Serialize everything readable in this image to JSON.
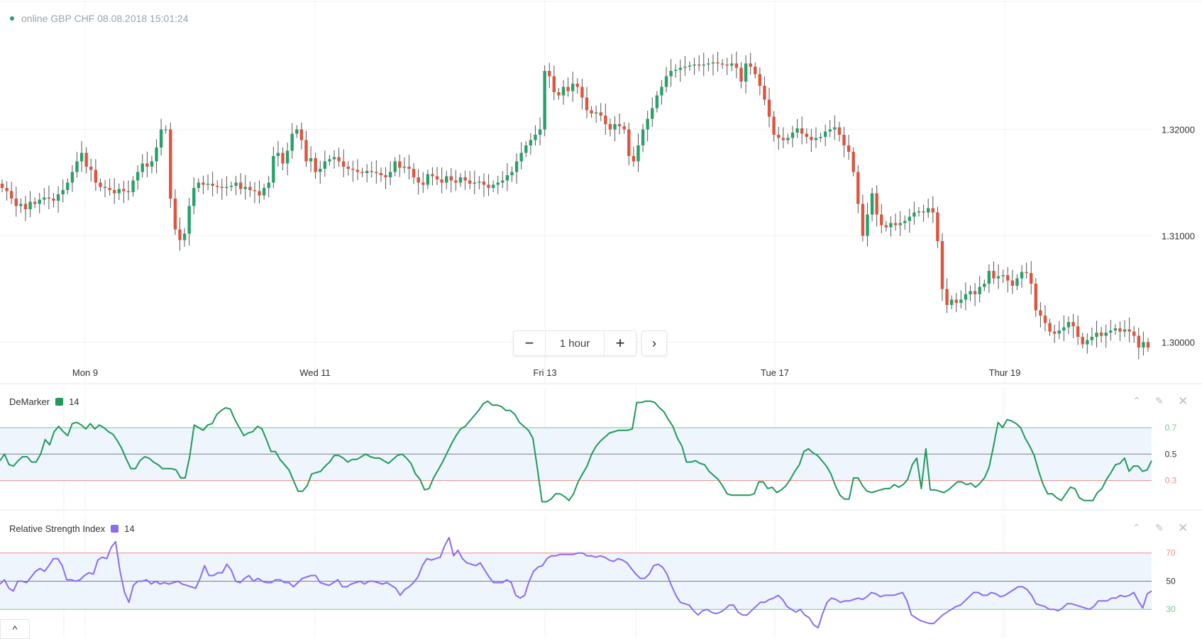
{
  "status": {
    "text": "online GBP CHF 08.08.2018 15:01:24",
    "dot_color": "#26a269"
  },
  "timeframe": {
    "minus": "−",
    "label": "1 hour",
    "plus": "+",
    "next": "›"
  },
  "colors": {
    "up": "#26a269",
    "down": "#e0533d",
    "demarker": "#1f9a5b",
    "rsi": "#8b6cf0",
    "band_fill": "#eef5fc",
    "upper_line_dem": "#7fd3a2",
    "lower_line_dem": "#ef8c8c"
  },
  "chart_data": [
    {
      "type": "candlestick",
      "xtick_labels": [
        "Mon 9",
        "Wed 11",
        "Fri 13",
        "Tue 17",
        "Thur 19"
      ],
      "ytick_labels": [
        "1.32000",
        "1.31000",
        "1.30000"
      ],
      "ylim": [
        1.2975,
        1.3315
      ],
      "series_close": [
        1.3145,
        1.3142,
        1.3135,
        1.3128,
        1.313,
        1.3125,
        1.3132,
        1.313,
        1.3134,
        1.3136,
        1.3135,
        1.3133,
        1.3139,
        1.3143,
        1.315,
        1.316,
        1.317,
        1.3178,
        1.3165,
        1.3162,
        1.315,
        1.3146,
        1.3145,
        1.3143,
        1.314,
        1.3144,
        1.3142,
        1.3141,
        1.3152,
        1.316,
        1.3168,
        1.3165,
        1.317,
        1.3183,
        1.32,
        1.32,
        1.3135,
        1.3106,
        1.3096,
        1.3102,
        1.3128,
        1.3145,
        1.315,
        1.3148,
        1.3149,
        1.3147,
        1.3146,
        1.3145,
        1.3146,
        1.3147,
        1.315,
        1.3144,
        1.3146,
        1.3143,
        1.3142,
        1.3138,
        1.3145,
        1.315,
        1.3175,
        1.3178,
        1.3168,
        1.318,
        1.3196,
        1.32,
        1.319,
        1.317,
        1.3173,
        1.316,
        1.3163,
        1.317,
        1.3172,
        1.3174,
        1.317,
        1.3165,
        1.3163,
        1.3162,
        1.316,
        1.3159,
        1.3161,
        1.316,
        1.3159,
        1.3157,
        1.3155,
        1.316,
        1.317,
        1.3164,
        1.3165,
        1.3163,
        1.3155,
        1.315,
        1.3148,
        1.3158,
        1.3156,
        1.3153,
        1.315,
        1.3156,
        1.3152,
        1.315,
        1.3155,
        1.3152,
        1.3149,
        1.315,
        1.3151,
        1.3148,
        1.3145,
        1.3148,
        1.315,
        1.3152,
        1.3157,
        1.316,
        1.317,
        1.3178,
        1.3185,
        1.319,
        1.3195,
        1.32,
        1.3255,
        1.325,
        1.3235,
        1.3232,
        1.324,
        1.3236,
        1.3243,
        1.324,
        1.323,
        1.3218,
        1.3215,
        1.3216,
        1.3213,
        1.3205,
        1.32,
        1.3205,
        1.3203,
        1.32,
        1.3175,
        1.317,
        1.3185,
        1.32,
        1.321,
        1.322,
        1.3232,
        1.324,
        1.325,
        1.3255,
        1.3256,
        1.3258,
        1.3259,
        1.326,
        1.3261,
        1.326,
        1.3261,
        1.3262,
        1.3263,
        1.3262,
        1.3261,
        1.326,
        1.3262,
        1.3258,
        1.3245,
        1.3262,
        1.3259,
        1.3252,
        1.3241,
        1.3228,
        1.3212,
        1.3195,
        1.3192,
        1.319,
        1.3192,
        1.3197,
        1.3201,
        1.3196,
        1.3193,
        1.319,
        1.3192,
        1.3193,
        1.3198,
        1.32,
        1.3202,
        1.3195,
        1.3185,
        1.3179,
        1.316,
        1.313,
        1.31,
        1.312,
        1.314,
        1.312,
        1.311,
        1.3108,
        1.3112,
        1.311,
        1.3112,
        1.3114,
        1.3118,
        1.3122,
        1.3123,
        1.3122,
        1.3126,
        1.3122,
        1.3095,
        1.305,
        1.3035,
        1.304,
        1.3037,
        1.304,
        1.3045,
        1.3048,
        1.3045,
        1.3052,
        1.3055,
        1.3067,
        1.306,
        1.3062,
        1.3063,
        1.3058,
        1.3053,
        1.306,
        1.3066,
        1.3065,
        1.3055,
        1.303,
        1.3025,
        1.3018,
        1.301,
        1.3008,
        1.3011,
        1.3014,
        1.3019,
        1.3015,
        1.3005,
        1.2998,
        1.3002,
        1.3005,
        1.3009,
        1.3006,
        1.3009,
        1.3011,
        1.3013,
        1.301,
        1.3012,
        1.301,
        1.3006,
        1.2995,
        1.3,
        1.2995
      ]
    },
    {
      "type": "line",
      "title": "DeMarker",
      "legend": "14",
      "ytick_labels": [
        "0.7",
        "0.5",
        "0.3"
      ],
      "levels": [
        0.7,
        0.5,
        0.3
      ],
      "ylim": [
        0.1,
        0.93
      ],
      "values": [
        0.45,
        0.5,
        0.42,
        0.41,
        0.45,
        0.48,
        0.48,
        0.44,
        0.44,
        0.5,
        0.61,
        0.57,
        0.67,
        0.71,
        0.67,
        0.64,
        0.73,
        0.74,
        0.72,
        0.69,
        0.73,
        0.69,
        0.72,
        0.7,
        0.67,
        0.65,
        0.6,
        0.54,
        0.46,
        0.39,
        0.39,
        0.45,
        0.48,
        0.47,
        0.44,
        0.42,
        0.39,
        0.39,
        0.39,
        0.38,
        0.32,
        0.32,
        0.48,
        0.72,
        0.7,
        0.68,
        0.72,
        0.73,
        0.8,
        0.83,
        0.85,
        0.84,
        0.76,
        0.7,
        0.64,
        0.66,
        0.67,
        0.71,
        0.69,
        0.61,
        0.52,
        0.52,
        0.46,
        0.42,
        0.38,
        0.3,
        0.22,
        0.22,
        0.26,
        0.35,
        0.36,
        0.37,
        0.41,
        0.44,
        0.49,
        0.49,
        0.47,
        0.44,
        0.46,
        0.46,
        0.48,
        0.5,
        0.48,
        0.47,
        0.47,
        0.45,
        0.43,
        0.46,
        0.49,
        0.5,
        0.47,
        0.43,
        0.35,
        0.31,
        0.23,
        0.24,
        0.32,
        0.38,
        0.44,
        0.51,
        0.58,
        0.64,
        0.69,
        0.71,
        0.75,
        0.79,
        0.83,
        0.88,
        0.9,
        0.87,
        0.87,
        0.86,
        0.83,
        0.83,
        0.8,
        0.74,
        0.71,
        0.68,
        0.62,
        0.39,
        0.14,
        0.14,
        0.16,
        0.2,
        0.2,
        0.18,
        0.15,
        0.2,
        0.29,
        0.35,
        0.41,
        0.5,
        0.56,
        0.6,
        0.63,
        0.66,
        0.67,
        0.68,
        0.68,
        0.68,
        0.69,
        0.89,
        0.89,
        0.9,
        0.9,
        0.89,
        0.85,
        0.82,
        0.76,
        0.71,
        0.62,
        0.56,
        0.44,
        0.44,
        0.45,
        0.43,
        0.42,
        0.37,
        0.34,
        0.31,
        0.26,
        0.2,
        0.19,
        0.19,
        0.19,
        0.19,
        0.19,
        0.2,
        0.29,
        0.29,
        0.24,
        0.25,
        0.21,
        0.23,
        0.26,
        0.31,
        0.37,
        0.42,
        0.52,
        0.54,
        0.51,
        0.49,
        0.45,
        0.41,
        0.35,
        0.26,
        0.19,
        0.16,
        0.16,
        0.32,
        0.32,
        0.26,
        0.22,
        0.21,
        0.22,
        0.23,
        0.24,
        0.24,
        0.27,
        0.25,
        0.27,
        0.31,
        0.42,
        0.47,
        0.24,
        0.54,
        0.23,
        0.23,
        0.22,
        0.21,
        0.23,
        0.26,
        0.29,
        0.29,
        0.27,
        0.28,
        0.25,
        0.28,
        0.32,
        0.4,
        0.56,
        0.74,
        0.7,
        0.76,
        0.75,
        0.73,
        0.7,
        0.62,
        0.56,
        0.49,
        0.37,
        0.27,
        0.2,
        0.2,
        0.17,
        0.15,
        0.2,
        0.25,
        0.24,
        0.17,
        0.15,
        0.15,
        0.15,
        0.21,
        0.24,
        0.31,
        0.36,
        0.42,
        0.43,
        0.47,
        0.37,
        0.41,
        0.41,
        0.37,
        0.38,
        0.45
      ]
    },
    {
      "type": "line",
      "title": "Relative Strength Index",
      "legend": "14",
      "ytick_labels": [
        "70",
        "50",
        "30"
      ],
      "levels": [
        70,
        50,
        30
      ],
      "ylim": [
        13,
        90
      ],
      "values": [
        48,
        51,
        45,
        43,
        50,
        50,
        49,
        53,
        57,
        59,
        57,
        61,
        66,
        66,
        61,
        51,
        51,
        50,
        51,
        54,
        56,
        55,
        65,
        67,
        66,
        74,
        78,
        57,
        42,
        35,
        47,
        50,
        50,
        51,
        48,
        50,
        48,
        49,
        48,
        49,
        50,
        48,
        47,
        46,
        45,
        52,
        61,
        54,
        54,
        56,
        56,
        62,
        58,
        50,
        49,
        52,
        54,
        50,
        52,
        50,
        49,
        49,
        51,
        51,
        49,
        49,
        46,
        49,
        52,
        53,
        54,
        54,
        49,
        48,
        47,
        49,
        51,
        46,
        46,
        48,
        49,
        50,
        48,
        50,
        50,
        49,
        48,
        49,
        47,
        45,
        40,
        44,
        46,
        49,
        53,
        61,
        66,
        65,
        66,
        67,
        75,
        81,
        68,
        72,
        66,
        63,
        62,
        61,
        63,
        58,
        53,
        49,
        49,
        49,
        51,
        49,
        40,
        38,
        40,
        50,
        57,
        60,
        61,
        66,
        68,
        68,
        69,
        69,
        69,
        69,
        70,
        70,
        68,
        68,
        67,
        68,
        67,
        65,
        64,
        66,
        65,
        63,
        59,
        55,
        52,
        52,
        55,
        61,
        62,
        60,
        55,
        47,
        40,
        35,
        34,
        33,
        29,
        26,
        29,
        30,
        28,
        27,
        28,
        30,
        33,
        33,
        28,
        26,
        26,
        29,
        32,
        35,
        35,
        37,
        38,
        40,
        37,
        32,
        30,
        28,
        30,
        26,
        24,
        19,
        17,
        27,
        35,
        38,
        37,
        35,
        36,
        36,
        37,
        38,
        37,
        39,
        42,
        41,
        39,
        40,
        40,
        40,
        41,
        42,
        36,
        26,
        24,
        22,
        21,
        20,
        20,
        23,
        26,
        28,
        30,
        32,
        33,
        36,
        39,
        42,
        42,
        40,
        40,
        42,
        41,
        39,
        40,
        42,
        44,
        46,
        46,
        44,
        40,
        34,
        33,
        32,
        30,
        30,
        29,
        31,
        34,
        34,
        33,
        32,
        31,
        30,
        32,
        36,
        36,
        36,
        38,
        38,
        40,
        39,
        40,
        42,
        36,
        31,
        41,
        43
      ]
    }
  ],
  "panels": {
    "demarker": {
      "title": "DeMarker",
      "period": "14"
    },
    "rsi": {
      "title": "Relative Strength Index",
      "period": "14"
    }
  },
  "icons": {
    "collapse": "chevron-up-icon",
    "edit": "pencil-icon",
    "close": "close-icon"
  },
  "corner_button": "^"
}
